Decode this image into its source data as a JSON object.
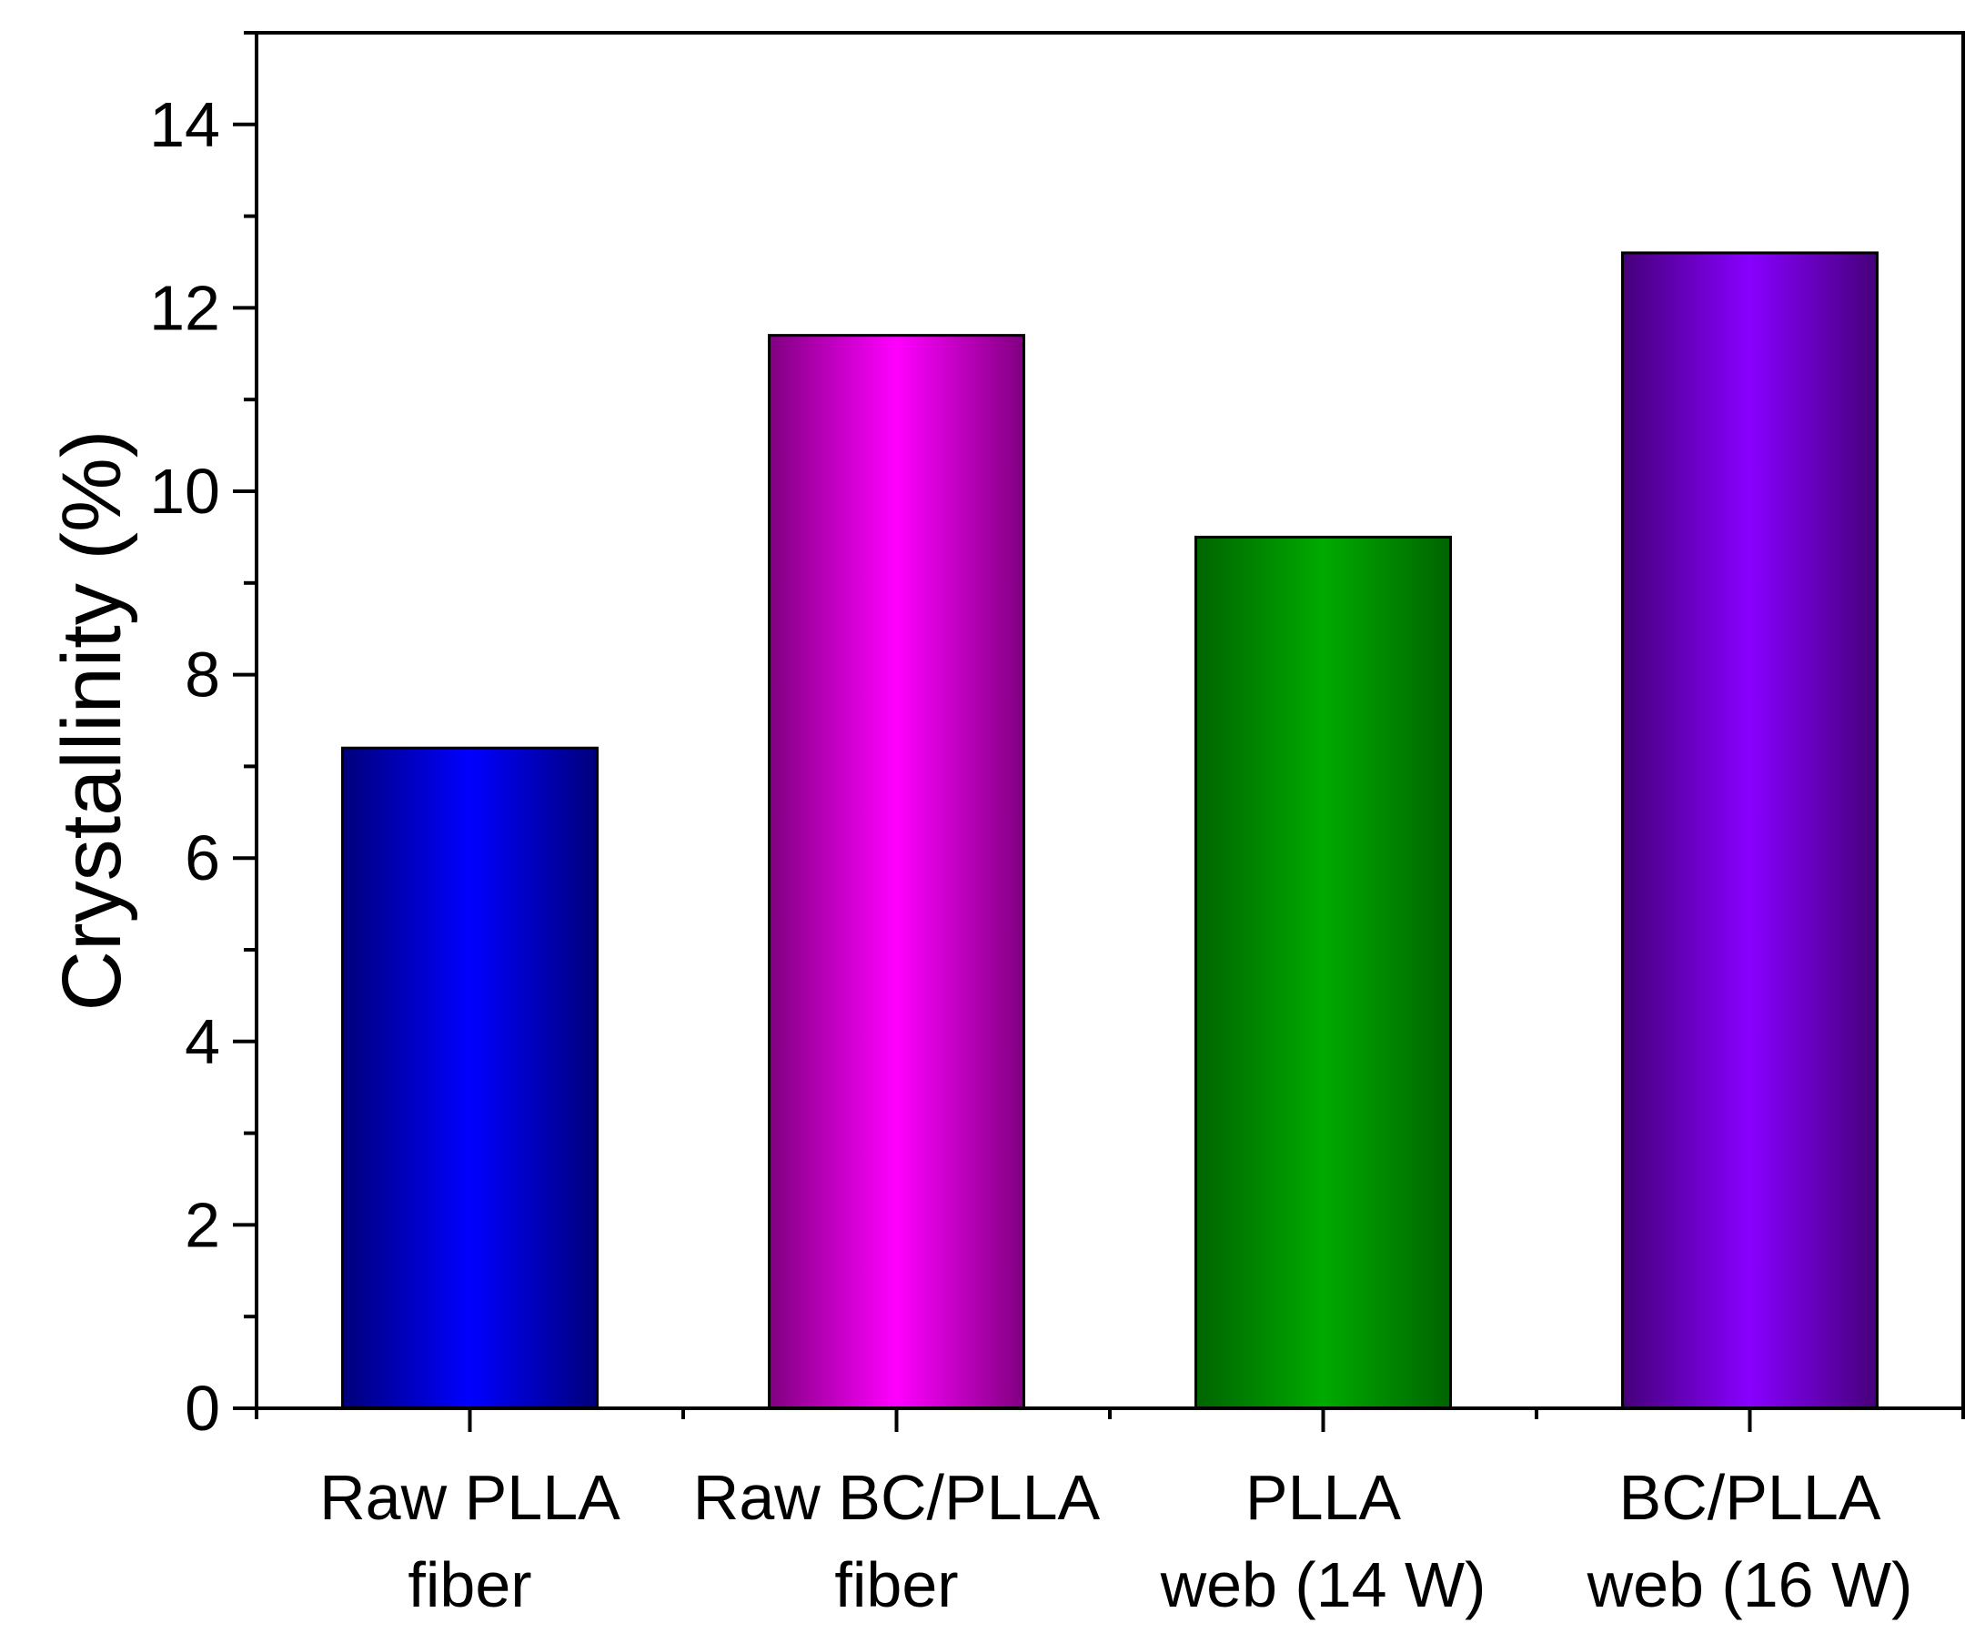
{
  "chart_data": {
    "type": "bar",
    "title": "",
    "xlabel": "",
    "ylabel": "Crystallinity (%)",
    "ylim": [
      0,
      15
    ],
    "yticks": [
      0,
      2,
      4,
      6,
      8,
      10,
      12,
      14
    ],
    "grid": false,
    "legend": "none",
    "categories": [
      {
        "lines": [
          "Raw PLLA",
          "fiber"
        ]
      },
      {
        "lines": [
          "Raw BC/PLLA",
          "fiber"
        ]
      },
      {
        "lines": [
          "PLLA",
          "web (14 W)"
        ]
      },
      {
        "lines": [
          "BC/PLLA",
          "web (16 W)"
        ]
      }
    ],
    "values": [
      7.2,
      11.7,
      9.5,
      12.6
    ],
    "colors": [
      "#0000ff",
      "#ff00ff",
      "#00aa00",
      "#8800ff"
    ],
    "edge_colors": [
      "#00007a",
      "#800080",
      "#006400",
      "#45007a"
    ]
  }
}
